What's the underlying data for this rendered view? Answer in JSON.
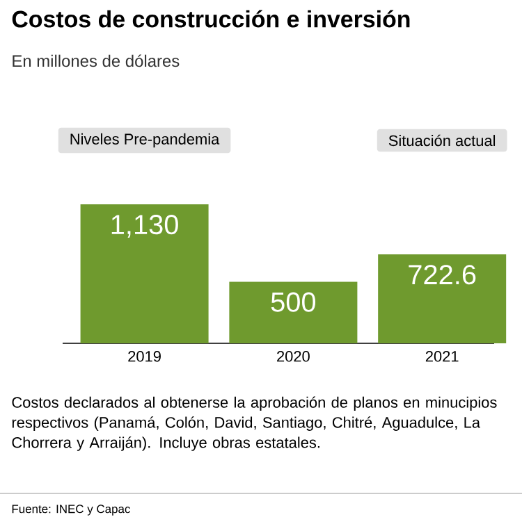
{
  "chart_data": {
    "type": "bar",
    "title": "Costos de construcción e inversión",
    "subtitle": "En millones de dólares",
    "categories": [
      "2019",
      "2020",
      "2021"
    ],
    "values": [
      1130,
      500,
      722.6
    ],
    "value_labels": [
      "1,130",
      "500",
      "722.6"
    ],
    "color": "#6f9a2e",
    "tick_labels": "x",
    "annotations": [
      "Niveles Pre-pandemia",
      "Situación actual",
      "Costos declarados al obtenerse la aprobación de planos en minucipios respectivos (Panamá, Colón, David, Santiago, Chitré, Aguadulce, La Chorrera y Arraiján). Incluye obras estatales.",
      "Fuente: INEC y Capac"
    ]
  }
}
